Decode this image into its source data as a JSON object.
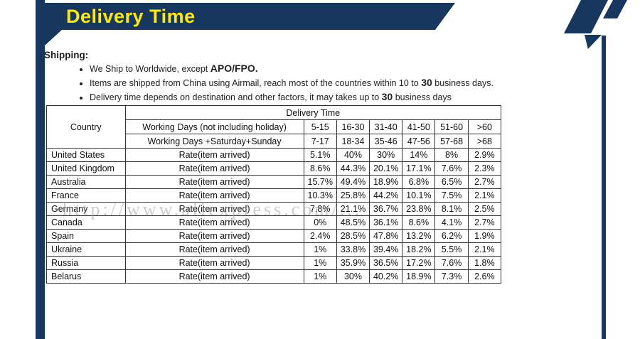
{
  "banner": {
    "title": "Delivery Time"
  },
  "colors": {
    "navy": "#17375e",
    "yellow": "#ffeb00"
  },
  "shipping": {
    "heading": "Shipping:",
    "bullets": [
      {
        "pre": "We Ship to Worldwide, except ",
        "bold": "APO/FPO.",
        "post": ""
      },
      {
        "pre": "Items are shipped from China using Airmail, reach most of the countries within 10 to ",
        "bold": "30",
        "post": " business days."
      },
      {
        "pre": "Delivery time depends on destination and other factors, it may takes up to ",
        "bold": "30",
        "post": " business days"
      }
    ]
  },
  "table": {
    "country_header": "Country",
    "delivery_time_header": "Delivery Time",
    "working_days_rows": [
      {
        "label": "Working Days (not including holiday)",
        "ranges": [
          "5-15",
          "16-30",
          "31-40",
          "41-50",
          "51-60",
          ">60"
        ]
      },
      {
        "label": "Working Days +Saturday+Sunday",
        "ranges": [
          "7-17",
          "18-34",
          "35-46",
          "47-56",
          "57-68",
          ">68"
        ]
      }
    ],
    "rows": [
      {
        "country": "United States",
        "label": "Rate(item arrived)",
        "values": [
          "5.1%",
          "40%",
          "30%",
          "14%",
          "8%",
          "2.9%"
        ]
      },
      {
        "country": "United Kingdom",
        "label": "Rate(item arrived)",
        "values": [
          "8.6%",
          "44.3%",
          "20.1%",
          "17.1%",
          "7.6%",
          "2.3%"
        ]
      },
      {
        "country": "Australia",
        "label": "Rate(item arrived)",
        "values": [
          "15.7%",
          "49.4%",
          "18.9%",
          "6.8%",
          "6.5%",
          "2.7%"
        ]
      },
      {
        "country": "France",
        "label": "Rate(item arrived)",
        "values": [
          "10.3%",
          "25.8%",
          "44.2%",
          "10.1%",
          "7.5%",
          "2.1%"
        ]
      },
      {
        "country": "Germany",
        "label": "Rate(item arrived)",
        "values": [
          "7.8%",
          "21.1%",
          "36.7%",
          "23.8%",
          "8.1%",
          "2.5%"
        ]
      },
      {
        "country": "Canada",
        "label": "Rate(item arrived)",
        "values": [
          "0%",
          "48.5%",
          "36.1%",
          "8.6%",
          "4.1%",
          "2.7%"
        ]
      },
      {
        "country": "Spain",
        "label": "Rate(item arrived)",
        "values": [
          "2.4%",
          "28.5%",
          "47.8%",
          "13.2%",
          "6.2%",
          "1.9%"
        ]
      },
      {
        "country": "Ukraine",
        "label": "Rate(item arrived)",
        "values": [
          "1%",
          "33.8%",
          "39.4%",
          "18.2%",
          "5.5%",
          "2.1%"
        ]
      },
      {
        "country": "Russia",
        "label": "Rate(item arrived)",
        "values": [
          "1%",
          "35.9%",
          "36.5%",
          "17.2%",
          "7.6%",
          "1.8%"
        ]
      },
      {
        "country": "Belarus",
        "label": "Rate(item arrived)",
        "values": [
          "1%",
          "30%",
          "40.2%",
          "18.9%",
          "7.3%",
          "2.6%"
        ]
      }
    ]
  },
  "watermark": "http://www.aliexpress.com/..."
}
